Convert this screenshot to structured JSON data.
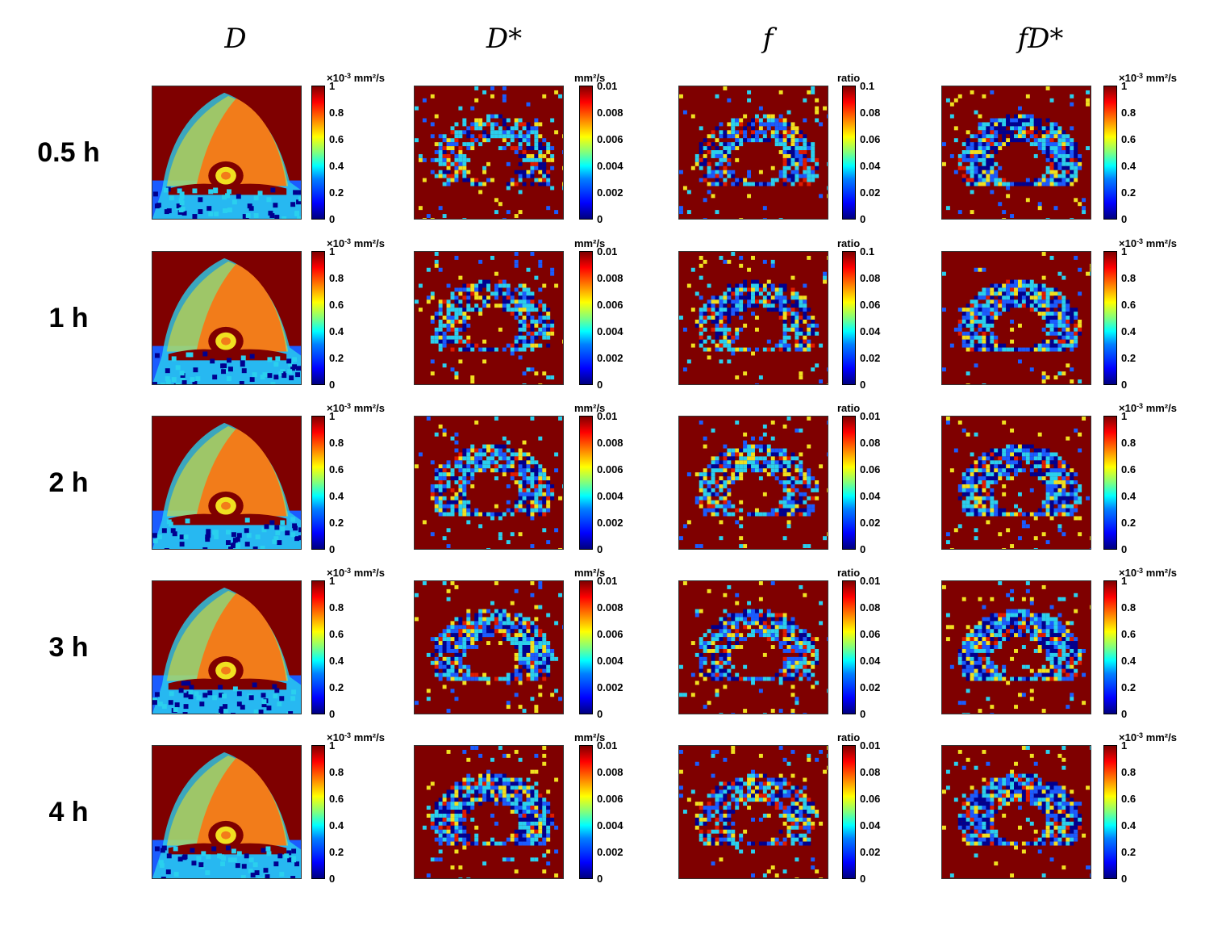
{
  "columns": [
    {
      "id": "D",
      "header": "D",
      "unit_prefix": "×10",
      "unit_exp": "-3",
      "unit_rest": " mm²/s",
      "ticks": [
        "1",
        "0.8",
        "0.6",
        "0.4",
        "0.2",
        "0"
      ]
    },
    {
      "id": "Dstar",
      "header": "D*",
      "unit_prefix": "",
      "unit_exp": "",
      "unit_rest": "mm²/s",
      "ticks": [
        "0.01",
        "0.008",
        "0.006",
        "0.004",
        "0.002",
        "0"
      ]
    },
    {
      "id": "f",
      "header": "f",
      "unit_prefix": "",
      "unit_exp": "",
      "unit_rest": "ratio",
      "ticks": [
        "0.1",
        "0.08",
        "0.06",
        "0.04",
        "0.02",
        "0"
      ]
    },
    {
      "id": "fDstar",
      "header": "fD*",
      "unit_prefix": "×10",
      "unit_exp": "-3",
      "unit_rest": " mm²/s",
      "ticks": [
        "1",
        "0.8",
        "0.6",
        "0.4",
        "0.2",
        "0"
      ]
    }
  ],
  "rows": [
    {
      "label": "0.5 h",
      "f_ticks": [
        "0.1",
        "0.08",
        "0.06",
        "0.04",
        "0.02",
        "0"
      ]
    },
    {
      "label": "1 h",
      "f_ticks": [
        "0.1",
        "0.08",
        "0.06",
        "0.04",
        "0.02",
        "0"
      ]
    },
    {
      "label": "2 h",
      "f_ticks": [
        "0.01",
        "0.08",
        "0.06",
        "0.04",
        "0.02",
        "0"
      ]
    },
    {
      "label": "3 h",
      "f_ticks": [
        "0.01",
        "0.08",
        "0.06",
        "0.04",
        "0.02",
        "0"
      ]
    },
    {
      "label": "4 h",
      "f_ticks": [
        "0.01",
        "0.08",
        "0.06",
        "0.04",
        "0.02",
        "0"
      ]
    }
  ],
  "colors": {
    "dark_red": "#7f0000",
    "red": "#e01b00",
    "orange": "#f27c1a",
    "yellow": "#f0e020",
    "cyan": "#2ad0ee",
    "blue": "#1a5cff",
    "dark_blue": "#00008f"
  }
}
